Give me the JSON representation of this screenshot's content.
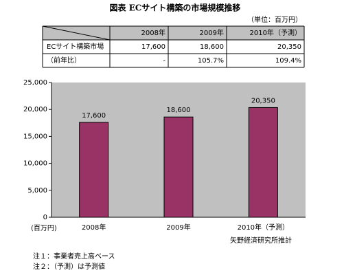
{
  "title": "図表 ECサイト構築の市場規模推移",
  "unit": "（単位：百万円）",
  "table": {
    "columns": [
      "2008年",
      "2009年",
      "2010年（予測）"
    ],
    "rows": [
      {
        "label": "ECサイト構築市場",
        "cells": [
          "17,600",
          "18,600",
          "20,350"
        ]
      },
      {
        "label": "（前年比）",
        "cells": [
          "-",
          "105.7%",
          "109.4%"
        ]
      }
    ]
  },
  "chart_data": {
    "type": "bar",
    "y_label": "(百万円)",
    "categories": [
      "2008年",
      "2009年",
      "2010年（予測）"
    ],
    "values": [
      17600,
      18600,
      20350
    ],
    "value_labels": [
      "17,600",
      "18,600",
      "20,350"
    ],
    "color": "#993366",
    "ylim": [
      0,
      25000
    ],
    "yticks": [
      0,
      {
        "value": 5000,
        "label": "5,000"
      },
      {
        "value": 10000,
        "label": "10,000"
      },
      {
        "value": 15000,
        "label": "15,000"
      },
      {
        "value": 20000,
        "label": "20,000"
      },
      {
        "value": 25000,
        "label": "25,000"
      }
    ]
  },
  "source": "矢野経済研究所推計",
  "notes": [
    "注１：事業者売上高ベース",
    "注２：（予測）は予測値"
  ]
}
